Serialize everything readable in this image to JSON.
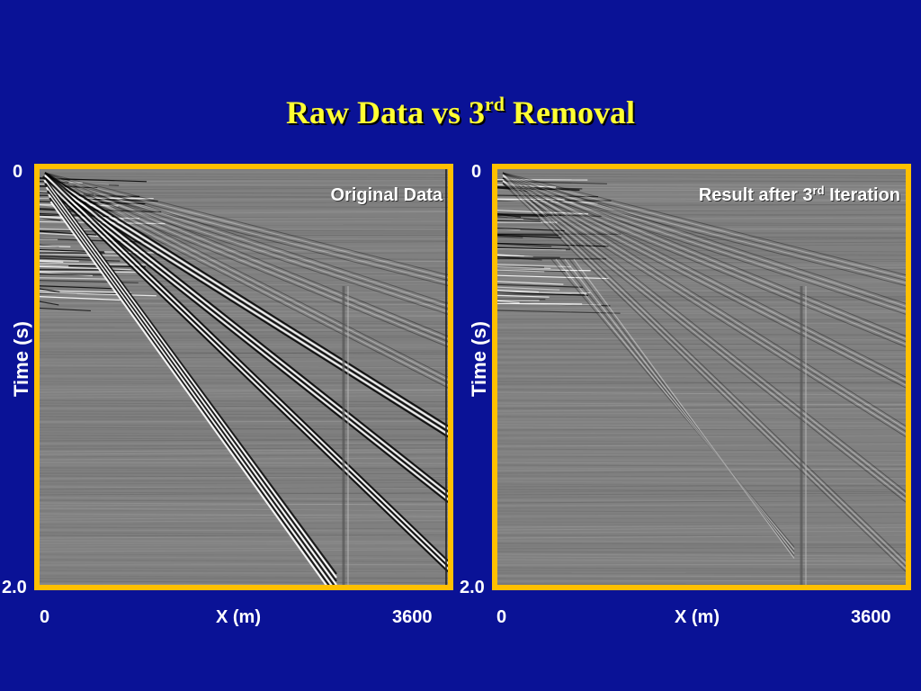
{
  "slide": {
    "title_main": "Raw Data vs 3",
    "title_sup": "rd",
    "title_tail": " Removal"
  },
  "panels": [
    {
      "label_main": "Original Data",
      "label_sup": "",
      "label_tail": "",
      "y_top": "0",
      "y_bottom": "2.0",
      "y_axis": "Time (s)",
      "x_left": "0",
      "x_axis": "X (m)",
      "x_right": "3600"
    },
    {
      "label_main": "Result after 3",
      "label_sup": "rd",
      "label_tail": " Iteration",
      "y_top": "0",
      "y_bottom": "2.0",
      "y_axis": "Time (s)",
      "x_left": "0",
      "x_axis": "X (m)",
      "x_right": "3600"
    }
  ],
  "colors": {
    "background": "#0a1296",
    "frame": "#ffc000",
    "title": "#ffff33",
    "seismic_bg": "#808080"
  }
}
